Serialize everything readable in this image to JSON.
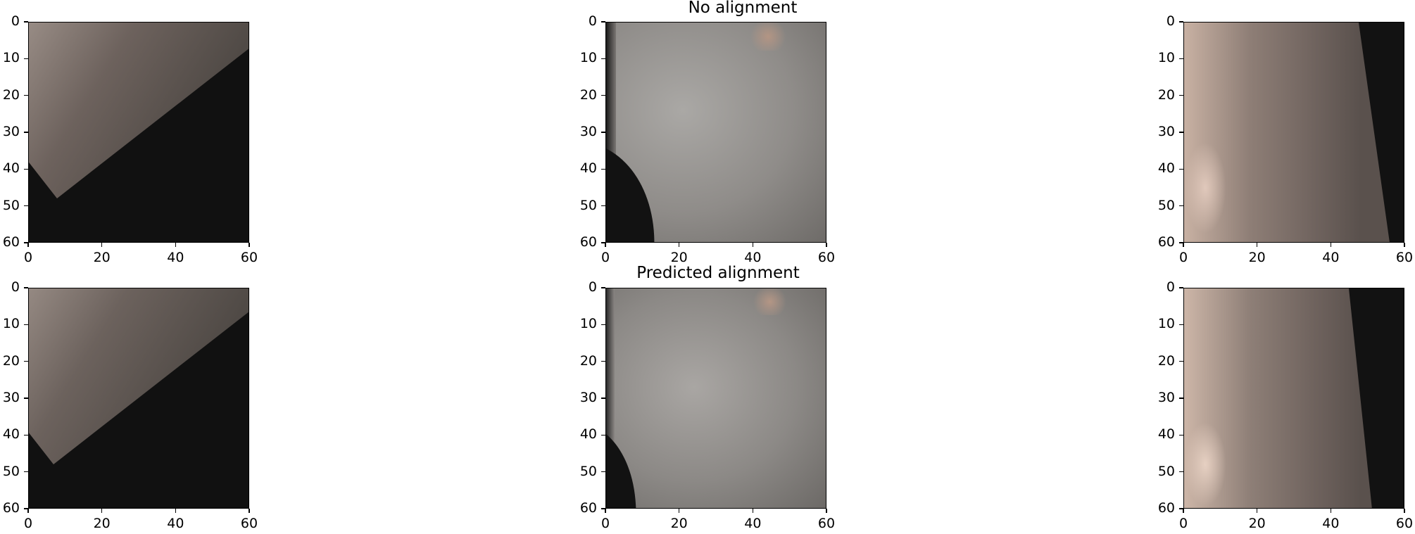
{
  "figure": {
    "titles": {
      "row1": "No alignment",
      "row2": "Predicted alignment"
    },
    "axis_ticks": [
      "0",
      "10",
      "20",
      "30",
      "40",
      "50",
      "60"
    ],
    "x_axis_ticks": [
      "0",
      "20",
      "40",
      "60"
    ],
    "panels": [
      {
        "row": 1,
        "col": 1,
        "name": "panel-r1-c1",
        "tone": "dark-rotated"
      },
      {
        "row": 1,
        "col": 2,
        "name": "panel-r1-c2",
        "tone": "gray"
      },
      {
        "row": 1,
        "col": 3,
        "name": "panel-r1-c3",
        "tone": "brown"
      },
      {
        "row": 2,
        "col": 1,
        "name": "panel-r2-c1",
        "tone": "dark-rotated"
      },
      {
        "row": 2,
        "col": 2,
        "name": "panel-r2-c2",
        "tone": "gray"
      },
      {
        "row": 2,
        "col": 3,
        "name": "panel-r2-c3",
        "tone": "brown"
      }
    ]
  }
}
